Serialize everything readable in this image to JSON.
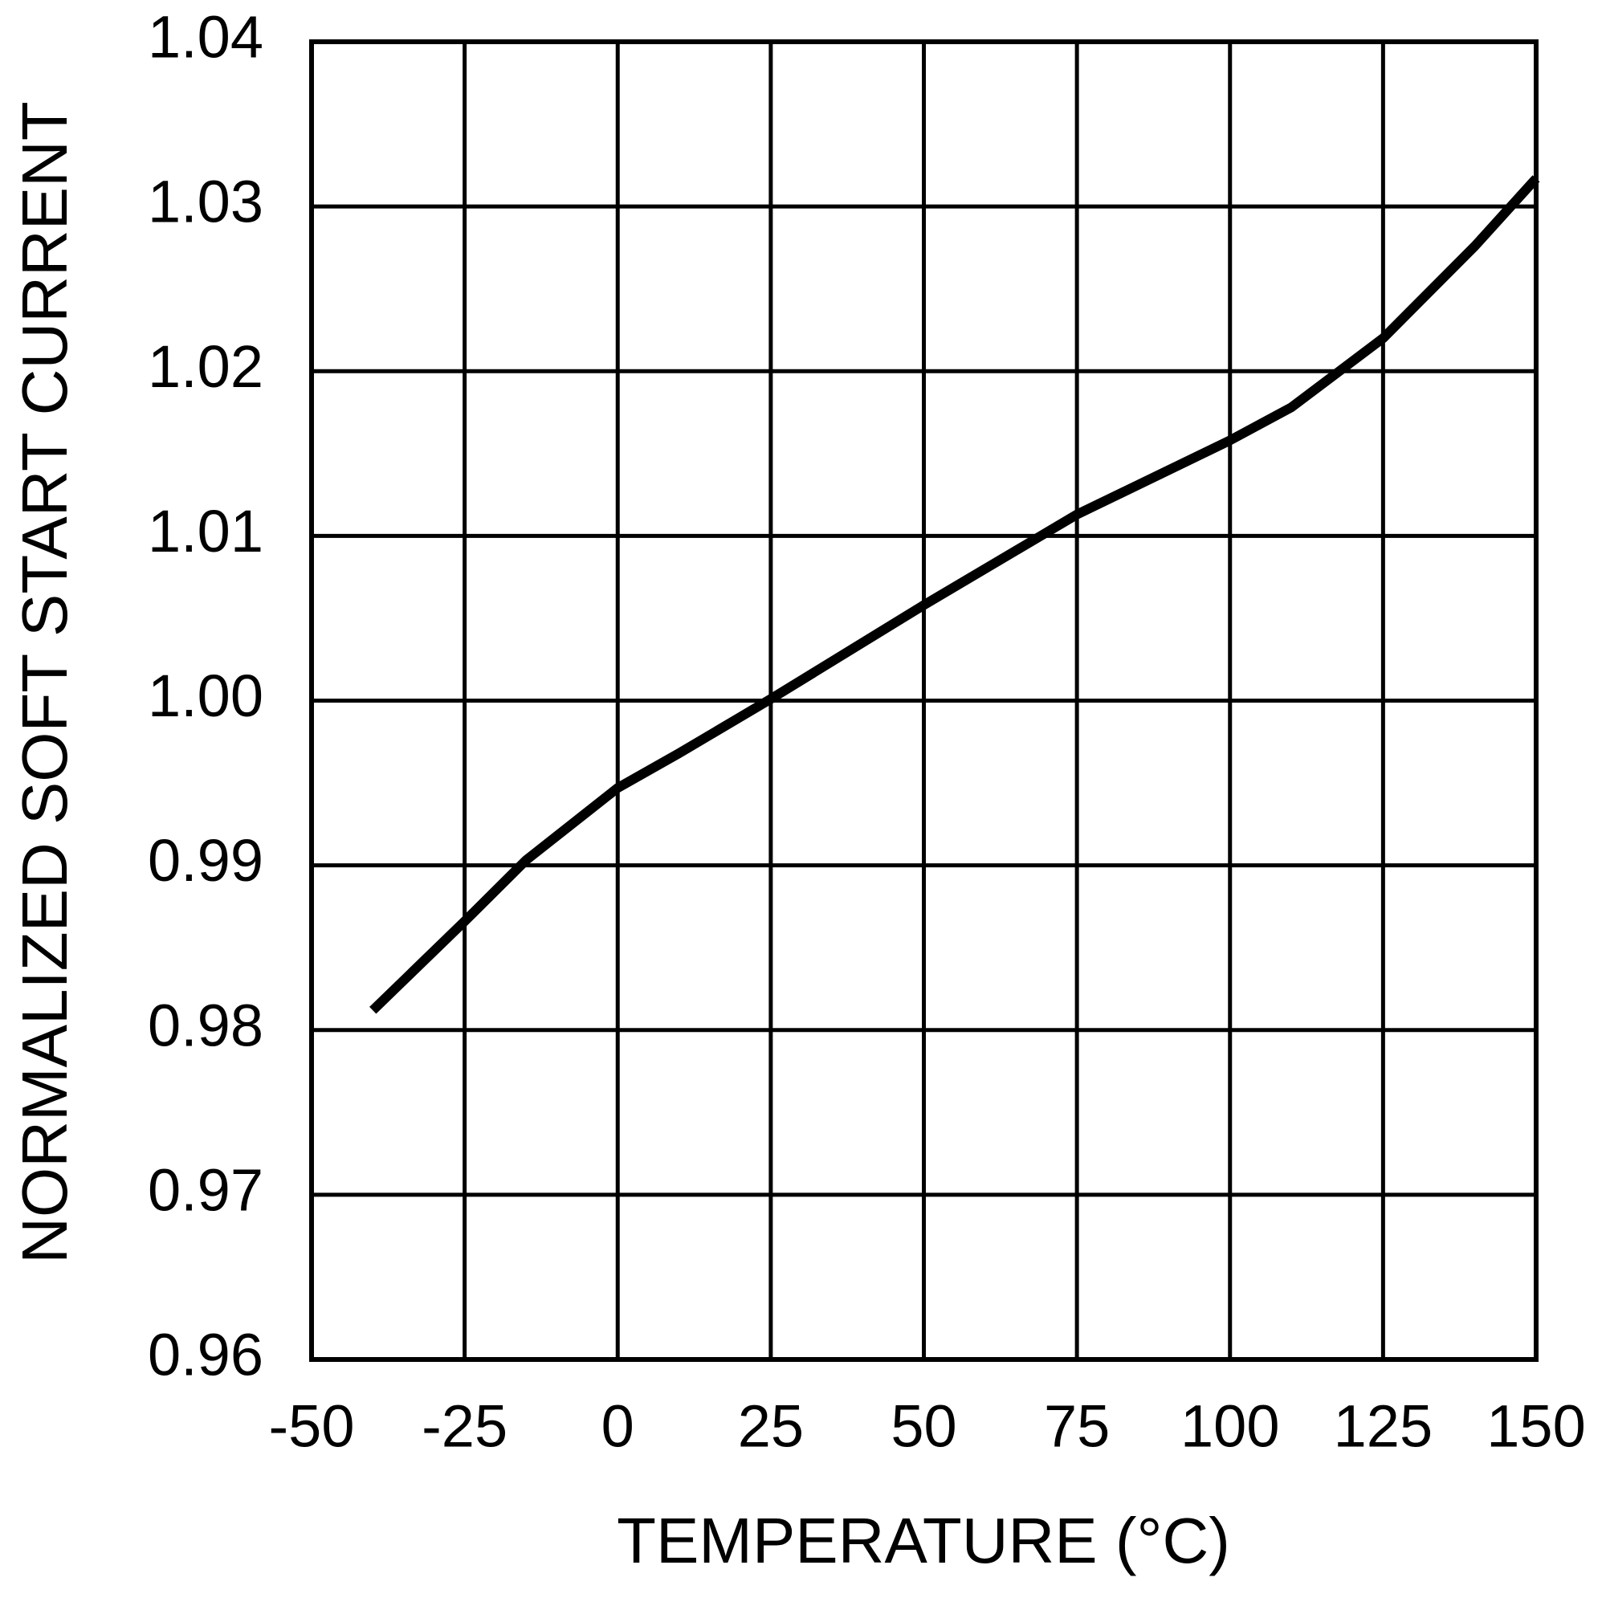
{
  "chart_data": {
    "type": "line",
    "x_label": "TEMPERATURE (°C)",
    "y_label": "NORMALIZED SOFT START CURRENT",
    "x": [
      -40,
      -25,
      -15,
      0,
      10,
      25,
      50,
      75,
      100,
      110,
      125,
      140,
      150
    ],
    "series": [
      {
        "color": "#000000",
        "values": [
          0.9812,
          0.9866,
          0.9903,
          0.9947,
          0.9968,
          1.0001,
          1.0058,
          1.0113,
          1.0158,
          1.0178,
          1.022,
          1.0276,
          1.0317
        ]
      }
    ],
    "xlim": [
      -50,
      150
    ],
    "xticks": [
      -50,
      -25,
      0,
      25,
      50,
      75,
      100,
      125,
      150
    ],
    "ylim": [
      0.96,
      1.04
    ],
    "yticks": [
      0.96,
      0.97,
      0.98,
      0.99,
      {
        "value": 1,
        "label": "1.00"
      },
      1.01,
      1.02,
      1.03,
      1.04
    ],
    "grid": true
  }
}
